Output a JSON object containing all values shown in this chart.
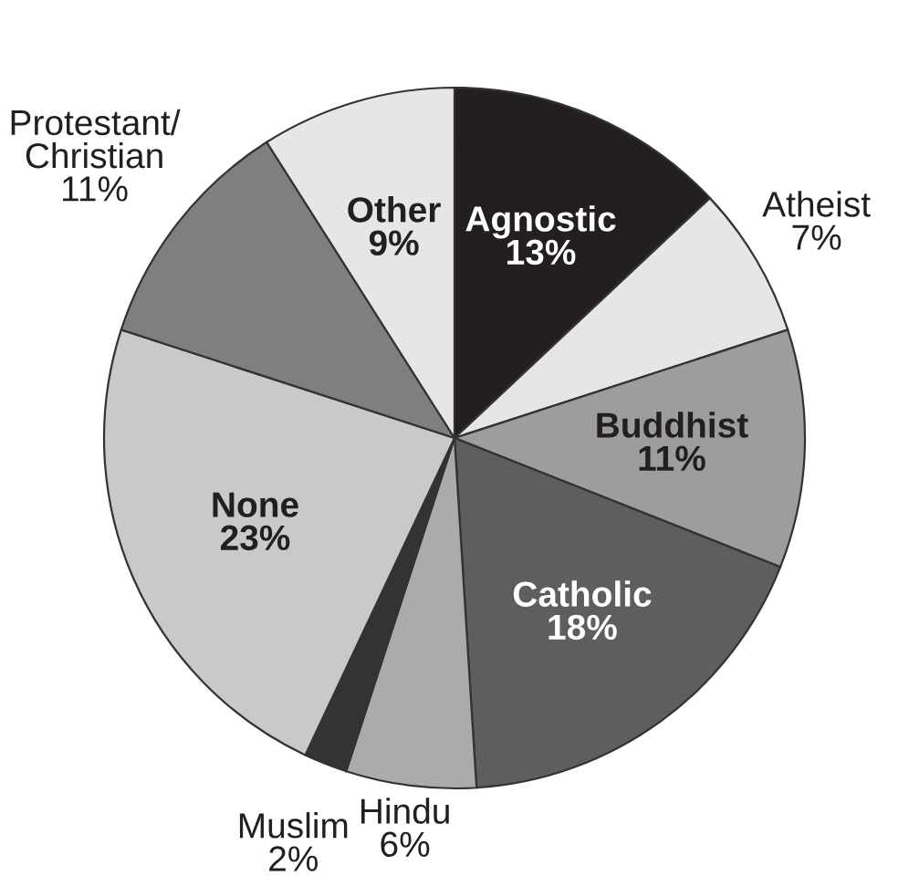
{
  "chart_data": {
    "type": "pie",
    "categories": [
      "Agnostic",
      "Atheist",
      "Buddhist",
      "Catholic",
      "Hindu",
      "Muslim",
      "None",
      "Protestant/\nChristian",
      "Other"
    ],
    "values": [
      13,
      7,
      11,
      18,
      6,
      2,
      23,
      11,
      9
    ],
    "value_labels": [
      "13%",
      "7%",
      "11%",
      "18%",
      "6%",
      "2%",
      "23%",
      "11%",
      "9%"
    ],
    "colors": [
      "#231f20",
      "#e6e6e6",
      "#9d9d9d",
      "#5e5e5e",
      "#ababab",
      "#333333",
      "#c9c9c9",
      "#7f7f7f",
      "#e6e6e6"
    ]
  }
}
